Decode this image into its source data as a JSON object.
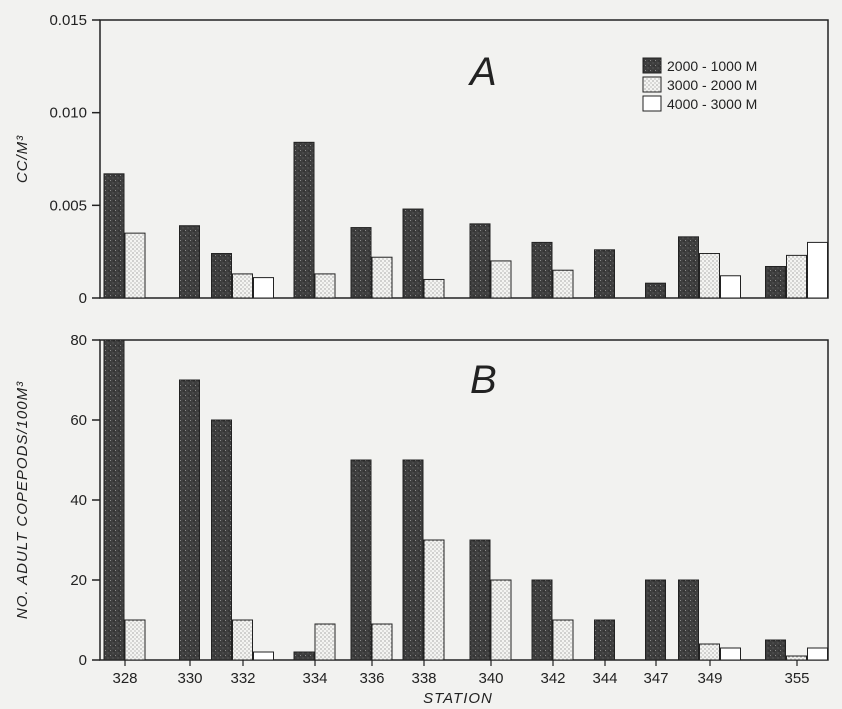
{
  "chart_data": [
    {
      "type": "bar",
      "title": "A",
      "xlabel": "",
      "ylabel": "CC/M³",
      "ylim": [
        0,
        0.015
      ],
      "yticks": [
        "0",
        "0.005",
        "0.010",
        "0.015"
      ],
      "categories": [
        "328",
        "330",
        "332",
        "334",
        "336",
        "338",
        "340",
        "342",
        "344",
        "347",
        "349",
        "355"
      ],
      "series": [
        {
          "name": "2000 - 1000 M",
          "values": [
            0.0067,
            0.0039,
            0.0024,
            0.0084,
            0.0038,
            0.0048,
            0.004,
            0.003,
            0.0026,
            0.0008,
            0.0033,
            0.0017
          ]
        },
        {
          "name": "3000 - 2000 M",
          "values": [
            0.0035,
            null,
            0.0013,
            0.0013,
            0.0022,
            0.001,
            0.002,
            0.0015,
            null,
            null,
            0.0024,
            0.0023
          ]
        },
        {
          "name": "4000 - 3000 M",
          "values": [
            null,
            null,
            0.0011,
            null,
            null,
            null,
            null,
            null,
            null,
            null,
            0.0012,
            0.003
          ]
        }
      ],
      "legend": "top-right",
      "grid": false
    },
    {
      "type": "bar",
      "title": "B",
      "xlabel": "STATION",
      "ylabel": "NO. ADULT COPEPODS/100M³",
      "ylim": [
        0,
        80
      ],
      "yticks": [
        "0",
        "20",
        "40",
        "60",
        "80"
      ],
      "categories": [
        "328",
        "330",
        "332",
        "334",
        "336",
        "338",
        "340",
        "342",
        "344",
        "347",
        "349",
        "355"
      ],
      "series": [
        {
          "name": "2000 - 1000 M",
          "values": [
            80,
            70,
            60,
            2,
            50,
            50,
            30,
            20,
            10,
            20,
            20,
            5
          ]
        },
        {
          "name": "3000 - 2000 M",
          "values": [
            10,
            null,
            10,
            9,
            9,
            30,
            20,
            10,
            null,
            null,
            4,
            1
          ]
        },
        {
          "name": "4000 - 3000 M",
          "values": [
            null,
            null,
            2,
            null,
            null,
            null,
            null,
            null,
            null,
            null,
            3,
            3
          ]
        }
      ],
      "grid": false
    }
  ]
}
